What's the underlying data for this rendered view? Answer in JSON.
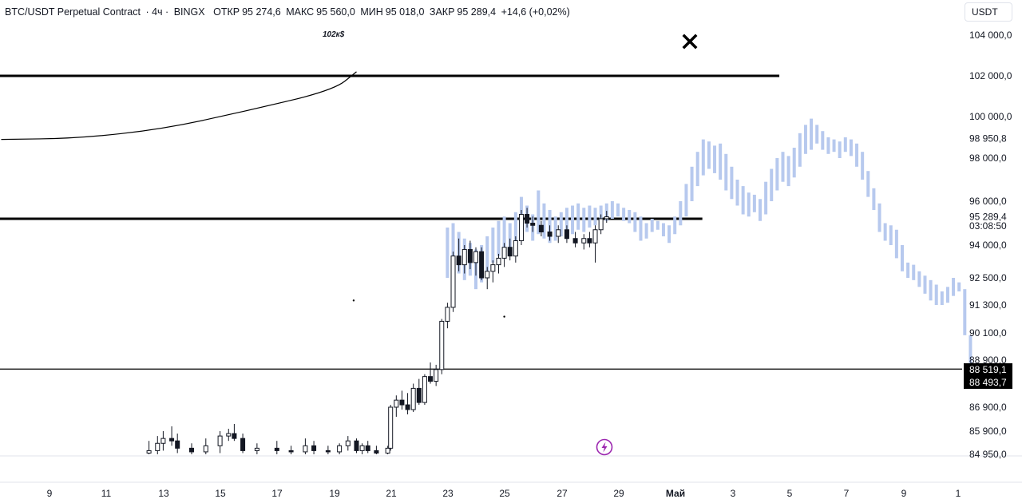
{
  "header": {
    "symbol": "BTC/USDT Perpetual Contract",
    "interval": "· 4ч ·",
    "exchange": "BINGX",
    "open_label": "ОТКР",
    "open_value": "95 274,6",
    "high_label": "МАКС",
    "high_value": "95 560,0",
    "low_label": "МИН",
    "low_value": "95 018,0",
    "close_label": "ЗАКР",
    "close_value": "95 289,4",
    "change": "+14,6 (+0,02%)"
  },
  "currency_button": "USDT",
  "annotation": "102к$",
  "icons": {
    "close": "close-icon",
    "alert": "lightning-bolt-icon"
  },
  "colors": {
    "candle": "#131722",
    "projection": "#b7c9ee",
    "line": "#000000",
    "alert": "#9c27b0"
  },
  "chart_data": {
    "type": "candlestick",
    "y_axis": {
      "position": "right",
      "range": [
        84950,
        104000
      ],
      "ticks": [
        {
          "label": "104 000,0",
          "value": 104000
        },
        {
          "label": "102 000,0",
          "value": 102000
        },
        {
          "label": "100 000,0",
          "value": 100000
        },
        {
          "label": "98 950,8",
          "value": 98950.8
        },
        {
          "label": "98 000,0",
          "value": 98000
        },
        {
          "label": "96 000,0",
          "value": 96000
        },
        {
          "label": "95 289,4",
          "value": 95289.4
        },
        {
          "label": "03:08:50",
          "value": 94880
        },
        {
          "label": "94 000,0",
          "value": 94000
        },
        {
          "label": "92 500,0",
          "value": 92500
        },
        {
          "label": "91 300,0",
          "value": 91300
        },
        {
          "label": "90 100,0",
          "value": 90100
        },
        {
          "label": "88 900,0",
          "value": 88900
        },
        {
          "label": "86 900,0",
          "value": 86900
        },
        {
          "label": "85 900,0",
          "value": 85900
        },
        {
          "label": "84 950,0",
          "value": 84950
        }
      ]
    },
    "x_axis": {
      "ticks": [
        "9",
        "11",
        "13",
        "15",
        "17",
        "19",
        "21",
        "23",
        "25",
        "27",
        "29",
        "Май",
        "3",
        "5",
        "7",
        "9",
        "1"
      ]
    },
    "price_tags": [
      {
        "label": "88 519,1",
        "value": 88519.1
      },
      {
        "label": "88 493,7",
        "value": 88493.7
      }
    ],
    "horizontal_lines": [
      {
        "value": 102000,
        "x_end_fraction": 0.81,
        "weight": "bold"
      },
      {
        "value": 95200,
        "x_end_fraction": 0.73,
        "weight": "bold"
      },
      {
        "value": 88519.1,
        "x_end_fraction": 1.0,
        "weight": "thin"
      }
    ],
    "candles": [
      {
        "day": 12.5,
        "o": 85000,
        "h": 85500,
        "l": 84950,
        "c": 85100
      },
      {
        "day": 12.8,
        "o": 85100,
        "h": 85700,
        "l": 84950,
        "c": 85400
      },
      {
        "day": 13.0,
        "o": 85400,
        "h": 85900,
        "l": 85100,
        "c": 85600
      },
      {
        "day": 13.3,
        "o": 85600,
        "h": 86100,
        "l": 85300,
        "c": 85500
      },
      {
        "day": 13.5,
        "o": 85500,
        "h": 85800,
        "l": 85000,
        "c": 85200
      },
      {
        "day": 14.0,
        "o": 85200,
        "h": 85400,
        "l": 84950,
        "c": 85050
      },
      {
        "day": 14.5,
        "o": 85050,
        "h": 85600,
        "l": 84950,
        "c": 85300
      },
      {
        "day": 15.0,
        "o": 85300,
        "h": 85900,
        "l": 85000,
        "c": 85700
      },
      {
        "day": 15.3,
        "o": 85700,
        "h": 86000,
        "l": 85500,
        "c": 85800
      },
      {
        "day": 15.5,
        "o": 85800,
        "h": 86200,
        "l": 85500,
        "c": 85600
      },
      {
        "day": 15.8,
        "o": 85600,
        "h": 85800,
        "l": 85000,
        "c": 85100
      },
      {
        "day": 16.3,
        "o": 85100,
        "h": 85400,
        "l": 84950,
        "c": 85200
      },
      {
        "day": 17.0,
        "o": 85200,
        "h": 85500,
        "l": 84950,
        "c": 85100
      },
      {
        "day": 17.5,
        "o": 85100,
        "h": 85300,
        "l": 84950,
        "c": 85050
      },
      {
        "day": 18.0,
        "o": 85050,
        "h": 85600,
        "l": 84950,
        "c": 85300
      },
      {
        "day": 18.3,
        "o": 85300,
        "h": 85500,
        "l": 84950,
        "c": 85100
      },
      {
        "day": 18.8,
        "o": 85100,
        "h": 85300,
        "l": 84950,
        "c": 85050
      },
      {
        "day": 19.2,
        "o": 85050,
        "h": 85400,
        "l": 84950,
        "c": 85300
      },
      {
        "day": 19.5,
        "o": 85300,
        "h": 85700,
        "l": 85100,
        "c": 85500
      },
      {
        "day": 19.8,
        "o": 85500,
        "h": 85600,
        "l": 85000,
        "c": 85100
      },
      {
        "day": 20.0,
        "o": 85100,
        "h": 85400,
        "l": 84950,
        "c": 85300
      },
      {
        "day": 20.2,
        "o": 85300,
        "h": 85500,
        "l": 85000,
        "c": 85100
      },
      {
        "day": 20.5,
        "o": 85100,
        "h": 85300,
        "l": 84950,
        "c": 85000
      },
      {
        "day": 20.9,
        "o": 85000,
        "h": 85300,
        "l": 84950,
        "c": 85200
      },
      {
        "day": 21.0,
        "o": 85200,
        "h": 87000,
        "l": 85100,
        "c": 86900
      },
      {
        "day": 21.2,
        "o": 86900,
        "h": 87400,
        "l": 86500,
        "c": 87200
      },
      {
        "day": 21.4,
        "o": 87200,
        "h": 87600,
        "l": 86800,
        "c": 87000
      },
      {
        "day": 21.6,
        "o": 87000,
        "h": 87500,
        "l": 86600,
        "c": 86800
      },
      {
        "day": 21.8,
        "o": 86800,
        "h": 87900,
        "l": 86700,
        "c": 87700
      },
      {
        "day": 22.0,
        "o": 87700,
        "h": 88100,
        "l": 87000,
        "c": 87100
      },
      {
        "day": 22.2,
        "o": 87100,
        "h": 88300,
        "l": 87000,
        "c": 88200
      },
      {
        "day": 22.4,
        "o": 88200,
        "h": 88800,
        "l": 87900,
        "c": 88000
      },
      {
        "day": 22.6,
        "o": 88000,
        "h": 88700,
        "l": 87800,
        "c": 88500
      },
      {
        "day": 22.8,
        "o": 88500,
        "h": 90700,
        "l": 88300,
        "c": 90600
      },
      {
        "day": 23.0,
        "o": 90600,
        "h": 91400,
        "l": 90300,
        "c": 91200
      },
      {
        "day": 23.2,
        "o": 91200,
        "h": 93700,
        "l": 91000,
        "c": 93500
      },
      {
        "day": 23.4,
        "o": 93500,
        "h": 94300,
        "l": 92800,
        "c": 93100
      },
      {
        "day": 23.6,
        "o": 93100,
        "h": 94000,
        "l": 92700,
        "c": 93800
      },
      {
        "day": 23.8,
        "o": 93800,
        "h": 94200,
        "l": 92900,
        "c": 93200
      },
      {
        "day": 24.0,
        "o": 93200,
        "h": 93900,
        "l": 92600,
        "c": 93700
      },
      {
        "day": 24.2,
        "o": 93700,
        "h": 93900,
        "l": 92400,
        "c": 92500
      },
      {
        "day": 24.4,
        "o": 92500,
        "h": 93000,
        "l": 92000,
        "c": 92800
      },
      {
        "day": 24.6,
        "o": 92800,
        "h": 93300,
        "l": 92300,
        "c": 93100
      },
      {
        "day": 24.8,
        "o": 93100,
        "h": 93600,
        "l": 92700,
        "c": 93400
      },
      {
        "day": 25.0,
        "o": 93400,
        "h": 94100,
        "l": 93000,
        "c": 93900
      },
      {
        "day": 25.2,
        "o": 93900,
        "h": 94300,
        "l": 93300,
        "c": 93500
      },
      {
        "day": 25.4,
        "o": 93500,
        "h": 94400,
        "l": 93200,
        "c": 94200
      },
      {
        "day": 25.6,
        "o": 94200,
        "h": 95600,
        "l": 94000,
        "c": 95400
      },
      {
        "day": 25.8,
        "o": 95400,
        "h": 95700,
        "l": 94800,
        "c": 95000
      },
      {
        "day": 26.0,
        "o": 95000,
        "h": 95300,
        "l": 94600,
        "c": 94900
      },
      {
        "day": 26.3,
        "o": 94900,
        "h": 95100,
        "l": 94400,
        "c": 94600
      },
      {
        "day": 26.6,
        "o": 94600,
        "h": 94900,
        "l": 94200,
        "c": 94400
      },
      {
        "day": 26.9,
        "o": 94400,
        "h": 94900,
        "l": 94100,
        "c": 94700
      },
      {
        "day": 27.2,
        "o": 94700,
        "h": 94900,
        "l": 94100,
        "c": 94300
      },
      {
        "day": 27.5,
        "o": 94300,
        "h": 94600,
        "l": 93900,
        "c": 94100
      },
      {
        "day": 27.8,
        "o": 94100,
        "h": 94500,
        "l": 93800,
        "c": 94300
      },
      {
        "day": 28.0,
        "o": 94300,
        "h": 94600,
        "l": 93900,
        "c": 94100
      },
      {
        "day": 28.2,
        "o": 94100,
        "h": 94900,
        "l": 93200,
        "c": 94700
      },
      {
        "day": 28.4,
        "o": 94700,
        "h": 95400,
        "l": 94500,
        "c": 95200
      },
      {
        "day": 28.6,
        "o": 95200,
        "h": 95560,
        "l": 95018,
        "c": 95289.4
      }
    ],
    "projection": [
      {
        "day": 23.0,
        "o": 92500,
        "c": 94800
      },
      {
        "day": 23.2,
        "o": 93000,
        "c": 95000
      },
      {
        "day": 23.4,
        "o": 92700,
        "c": 94600
      },
      {
        "day": 23.6,
        "o": 92400,
        "c": 94300
      },
      {
        "day": 23.8,
        "o": 92600,
        "c": 94100
      },
      {
        "day": 24.0,
        "o": 92000,
        "c": 93800
      },
      {
        "day": 24.2,
        "o": 92300,
        "c": 94000
      },
      {
        "day": 24.4,
        "o": 92800,
        "c": 94400
      },
      {
        "day": 24.6,
        "o": 93200,
        "c": 94800
      },
      {
        "day": 24.8,
        "o": 93500,
        "c": 95100
      },
      {
        "day": 25.0,
        "o": 93800,
        "c": 95300
      },
      {
        "day": 25.2,
        "o": 93600,
        "c": 95000
      },
      {
        "day": 25.4,
        "o": 94000,
        "c": 95500
      },
      {
        "day": 25.6,
        "o": 94400,
        "c": 96200
      },
      {
        "day": 25.8,
        "o": 94600,
        "c": 95800
      },
      {
        "day": 26.0,
        "o": 94200,
        "c": 95400
      },
      {
        "day": 26.2,
        "o": 94500,
        "c": 96500
      },
      {
        "day": 26.4,
        "o": 94300,
        "c": 95900
      },
      {
        "day": 26.6,
        "o": 94100,
        "c": 95600
      },
      {
        "day": 26.8,
        "o": 94200,
        "c": 95300
      },
      {
        "day": 27.0,
        "o": 94400,
        "c": 95500
      },
      {
        "day": 27.2,
        "o": 94300,
        "c": 95700
      },
      {
        "day": 27.4,
        "o": 94500,
        "c": 95800
      },
      {
        "day": 27.6,
        "o": 94700,
        "c": 95900
      },
      {
        "day": 27.8,
        "o": 94600,
        "c": 95700
      },
      {
        "day": 28.0,
        "o": 94800,
        "c": 95800
      },
      {
        "day": 28.2,
        "o": 94900,
        "c": 95700
      },
      {
        "day": 28.4,
        "o": 95000,
        "c": 95800
      },
      {
        "day": 28.6,
        "o": 95100,
        "c": 95900
      },
      {
        "day": 28.8,
        "o": 95200,
        "c": 96000
      },
      {
        "day": 29.0,
        "o": 95300,
        "c": 95900
      },
      {
        "day": 29.2,
        "o": 95100,
        "c": 95700
      },
      {
        "day": 29.4,
        "o": 95000,
        "c": 95600
      },
      {
        "day": 29.6,
        "o": 94600,
        "c": 95500
      },
      {
        "day": 29.8,
        "o": 94200,
        "c": 95300
      },
      {
        "day": 30.0,
        "o": 94300,
        "c": 95000
      },
      {
        "day": 30.2,
        "o": 94600,
        "c": 95200
      },
      {
        "day": 30.4,
        "o": 94700,
        "c": 95100
      },
      {
        "day": 30.6,
        "o": 94400,
        "c": 95000
      },
      {
        "day": 30.8,
        "o": 94100,
        "c": 94900
      },
      {
        "day": 31.0,
        "o": 94500,
        "c": 95300
      },
      {
        "day": 31.2,
        "o": 94900,
        "c": 96000
      },
      {
        "day": 31.4,
        "o": 95300,
        "c": 96800
      },
      {
        "day": 31.6,
        "o": 96000,
        "c": 97600
      },
      {
        "day": 31.8,
        "o": 96700,
        "c": 98300
      },
      {
        "day": 32.0,
        "o": 97200,
        "c": 98900
      },
      {
        "day": 32.2,
        "o": 97500,
        "c": 98800
      },
      {
        "day": 32.4,
        "o": 97300,
        "c": 98600
      },
      {
        "day": 32.6,
        "o": 97000,
        "c": 98700
      },
      {
        "day": 32.8,
        "o": 96500,
        "c": 98200
      },
      {
        "day": 33.0,
        "o": 96100,
        "c": 97600
      },
      {
        "day": 33.2,
        "o": 95800,
        "c": 97000
      },
      {
        "day": 33.4,
        "o": 95400,
        "c": 96700
      },
      {
        "day": 33.6,
        "o": 95300,
        "c": 96400
      },
      {
        "day": 33.8,
        "o": 95500,
        "c": 96300
      },
      {
        "day": 34.0,
        "o": 95100,
        "c": 96100
      },
      {
        "day": 34.2,
        "o": 95400,
        "c": 96900
      },
      {
        "day": 34.4,
        "o": 96000,
        "c": 97500
      },
      {
        "day": 34.6,
        "o": 96500,
        "c": 98000
      },
      {
        "day": 34.8,
        "o": 96900,
        "c": 98300
      },
      {
        "day": 35.0,
        "o": 96700,
        "c": 98100
      },
      {
        "day": 35.2,
        "o": 97100,
        "c": 98500
      },
      {
        "day": 35.4,
        "o": 97600,
        "c": 99200
      },
      {
        "day": 35.6,
        "o": 98200,
        "c": 99600
      },
      {
        "day": 35.8,
        "o": 98400,
        "c": 99900
      },
      {
        "day": 36.0,
        "o": 98700,
        "c": 99600
      },
      {
        "day": 36.2,
        "o": 98400,
        "c": 99300
      },
      {
        "day": 36.4,
        "o": 98200,
        "c": 99000
      },
      {
        "day": 36.6,
        "o": 98300,
        "c": 98900
      },
      {
        "day": 36.8,
        "o": 98000,
        "c": 98800
      },
      {
        "day": 37.0,
        "o": 98300,
        "c": 99000
      },
      {
        "day": 37.2,
        "o": 98100,
        "c": 98900
      },
      {
        "day": 37.4,
        "o": 97600,
        "c": 98700
      },
      {
        "day": 37.6,
        "o": 97000,
        "c": 98300
      },
      {
        "day": 37.8,
        "o": 96200,
        "c": 97400
      },
      {
        "day": 38.0,
        "o": 95600,
        "c": 96600
      },
      {
        "day": 38.2,
        "o": 94600,
        "c": 95900
      },
      {
        "day": 38.4,
        "o": 94200,
        "c": 95000
      },
      {
        "day": 38.6,
        "o": 94000,
        "c": 94900
      },
      {
        "day": 38.8,
        "o": 93400,
        "c": 94700
      },
      {
        "day": 39.0,
        "o": 92800,
        "c": 94000
      },
      {
        "day": 39.2,
        "o": 92500,
        "c": 93200
      },
      {
        "day": 39.4,
        "o": 92400,
        "c": 93100
      },
      {
        "day": 39.6,
        "o": 92100,
        "c": 92800
      },
      {
        "day": 39.8,
        "o": 91800,
        "c": 92600
      },
      {
        "day": 40.0,
        "o": 91500,
        "c": 92400
      },
      {
        "day": 40.2,
        "o": 91300,
        "c": 92200
      },
      {
        "day": 40.4,
        "o": 91300,
        "c": 91900
      },
      {
        "day": 40.6,
        "o": 91400,
        "c": 92100
      },
      {
        "day": 40.8,
        "o": 91700,
        "c": 92500
      },
      {
        "day": 41.0,
        "o": 91900,
        "c": 92300
      },
      {
        "day": 41.2,
        "o": 90000,
        "c": 92000
      },
      {
        "day": 41.4,
        "o": 88300,
        "c": 90000
      }
    ],
    "curve": [
      [
        7.3,
        98900
      ],
      [
        10,
        98950
      ],
      [
        13,
        99400
      ],
      [
        16,
        100300
      ],
      [
        19,
        101300
      ],
      [
        19.8,
        102200
      ]
    ],
    "dots": [
      {
        "day": 19.7,
        "value": 91500
      },
      {
        "day": 25.0,
        "value": 90800
      }
    ]
  }
}
